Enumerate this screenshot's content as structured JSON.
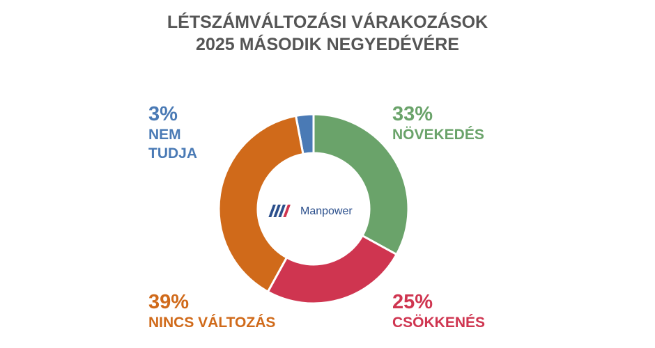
{
  "chart_data": {
    "type": "donut",
    "title": "LÉTSZÁMVÁLTOZÁSI VÁRAKOZÁSOK",
    "subtitle": "2025 MÁSODIK NEGYEDÉVÉRE",
    "categories": [
      "NÖVEKEDÉS",
      "CSÖKKENÉS",
      "NINCS VÁLTOZÁS",
      "NEM TUDJA"
    ],
    "values": [
      33,
      25,
      39,
      3
    ],
    "value_labels": [
      "33%",
      "25%",
      "39%",
      "3%"
    ],
    "colors": [
      "#6aa36a",
      "#cf3550",
      "#d06a1a",
      "#4a7ab5"
    ]
  },
  "logo": "Manpower"
}
